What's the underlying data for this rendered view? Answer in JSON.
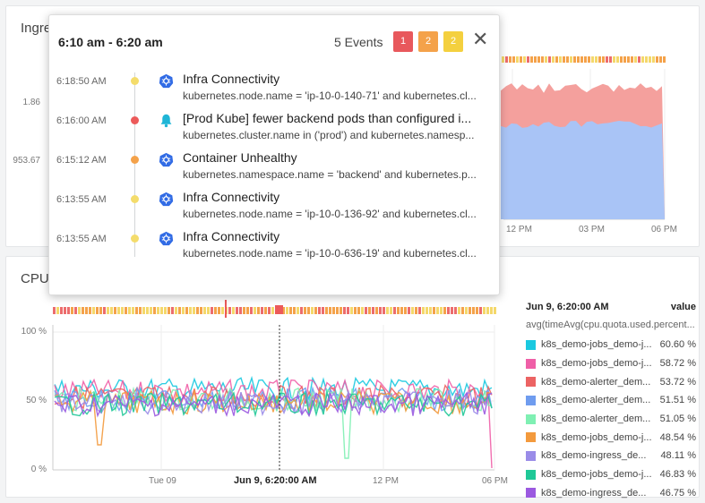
{
  "top_panel": {
    "title": "Ingre",
    "y_ticks": [
      "1.86",
      "953.67"
    ],
    "x_ticks": [
      "12 PM",
      "03 PM",
      "06 PM"
    ]
  },
  "bottom_panel": {
    "title": "CPU",
    "y_ticks": [
      "100 %",
      "50 %",
      "0 %"
    ],
    "x_ticks": [
      "Tue 09",
      "Jun 9, 6:20:00 AM",
      "12 PM",
      "06 PM"
    ]
  },
  "legend": {
    "header_time": "Jun 9, 6:20:00 AM",
    "header_value": "value",
    "subtitle": "avg(timeAvg(cpu.quota.used.percent...",
    "items": [
      {
        "name": "k8s_demo-jobs_demo-j...",
        "value": "60.60 %",
        "color": "#1ac9e0"
      },
      {
        "name": "k8s_demo-jobs_demo-j...",
        "value": "58.72 %",
        "color": "#ef5fa7"
      },
      {
        "name": "k8s_demo-alerter_dem...",
        "value": "53.72 %",
        "color": "#ec6363"
      },
      {
        "name": "k8s_demo-alerter_dem...",
        "value": "51.51 %",
        "color": "#6f9cef"
      },
      {
        "name": "k8s_demo-alerter_dem...",
        "value": "51.05 %",
        "color": "#7ff0b3"
      },
      {
        "name": "k8s_demo-jobs_demo-j...",
        "value": "48.54 %",
        "color": "#f39a3d"
      },
      {
        "name": "k8s_demo-ingress_de...",
        "value": "48.11 %",
        "color": "#9a8ce8"
      },
      {
        "name": "k8s_demo-jobs_demo-j...",
        "value": "46.83 %",
        "color": "#1fc897"
      },
      {
        "name": "k8s_demo-ingress_de...",
        "value": "46.75 %",
        "color": "#9b59e0"
      }
    ]
  },
  "popup": {
    "range": "6:10 am - 6:20 am",
    "count_label": "5 Events",
    "badges": [
      {
        "label": "1",
        "color": "#e8585c"
      },
      {
        "label": "2",
        "color": "#f4a24a"
      },
      {
        "label": "2",
        "color": "#f4d03f"
      }
    ],
    "close_icon": "close-icon",
    "events": [
      {
        "time": "6:18:50 AM",
        "dot": "#f4dc6b",
        "icon": "kubernetes-icon",
        "title": "Infra Connectivity",
        "sub": "kubernetes.node.name = 'ip-10-0-140-71' and kubernetes.cl..."
      },
      {
        "time": "6:16:00 AM",
        "dot": "#ec5a5a",
        "icon": "bell-icon",
        "title": "[Prod Kube] fewer backend pods than configured i...",
        "sub": "kubernetes.cluster.name in ('prod') and kubernetes.namesp..."
      },
      {
        "time": "6:15:12 AM",
        "dot": "#f4a24a",
        "icon": "kubernetes-icon",
        "title": "Container Unhealthy",
        "sub": "kubernetes.namespace.name = 'backend' and kubernetes.p..."
      },
      {
        "time": "6:13:55 AM",
        "dot": "#f4dc6b",
        "icon": "kubernetes-icon",
        "title": "Infra Connectivity",
        "sub": "kubernetes.node.name = 'ip-10-0-136-92' and kubernetes.cl..."
      },
      {
        "time": "6:13:55 AM",
        "dot": "#f4dc6b",
        "icon": "kubernetes-icon",
        "title": "Infra Connectivity",
        "sub": "kubernetes.node.name = 'ip-10-0-636-19' and kubernetes.cl..."
      }
    ]
  }
}
